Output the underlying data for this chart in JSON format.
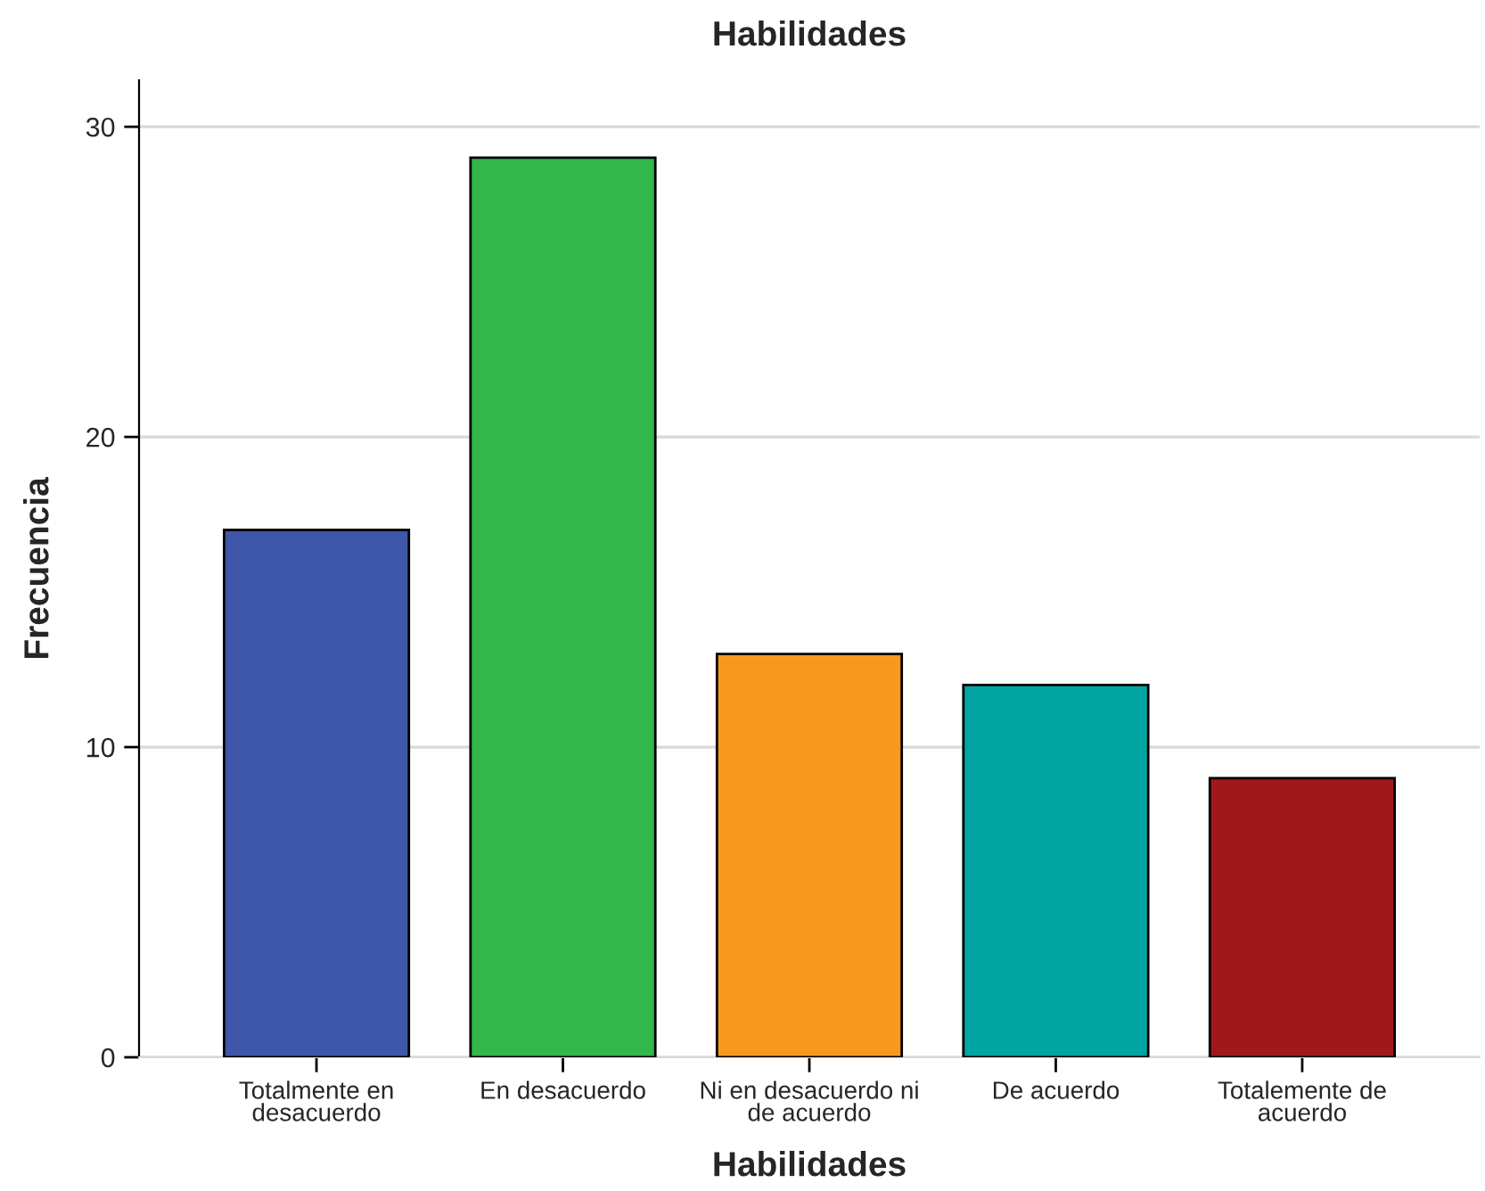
{
  "chart_data": {
    "type": "bar",
    "title": "Habilidades",
    "xlabel": "Habilidades",
    "ylabel": "Frecuencia",
    "categories": [
      "Totalmente en\ndesacuerdo",
      "En desacuerdo",
      "Ni en desacuerdo ni\nde acuerdo",
      "De acuerdo",
      "Totalemente de\nacuerdo"
    ],
    "values": [
      17,
      29,
      13,
      12,
      9
    ],
    "colors": [
      "#3f57a8",
      "#31b74a",
      "#f7991f",
      "#00a5a2",
      "#a0181c"
    ],
    "ylim": [
      0,
      31.5
    ],
    "yticks": [
      0,
      10,
      20,
      30
    ],
    "grid": "y",
    "legend": false
  }
}
